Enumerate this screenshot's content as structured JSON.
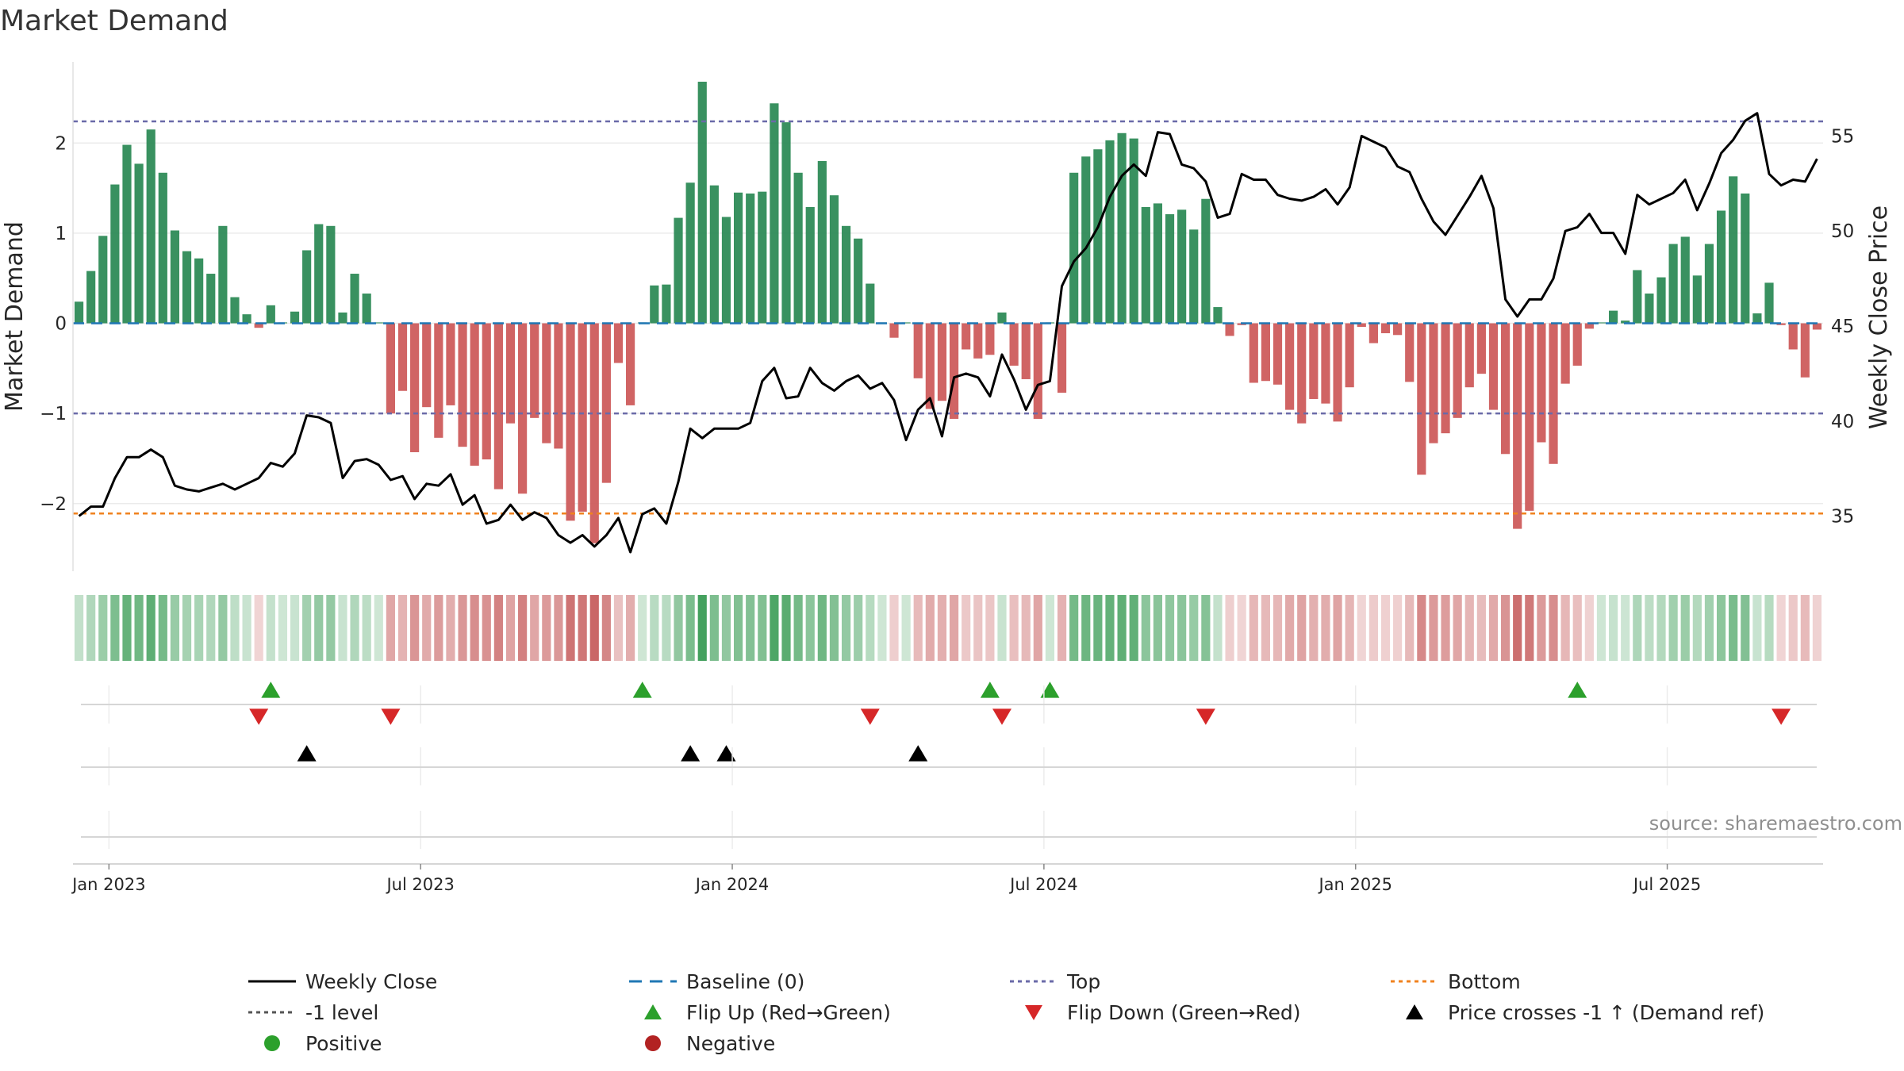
{
  "chart_data": {
    "type": "bar",
    "title": "Market Demand",
    "ylabel": "Market Demand",
    "y2label": "Weekly Close Price",
    "ylim": [
      -2.75,
      2.9
    ],
    "y2lim": [
      32.1,
      58.9
    ],
    "yticks": [
      -2,
      -1,
      0,
      1,
      2
    ],
    "y2ticks": [
      35,
      40,
      45,
      50,
      55
    ],
    "ytick_labels": [
      "−2",
      "−1",
      "0",
      "1",
      "2"
    ],
    "y2tick_labels": [
      "35",
      "40",
      "45",
      "50",
      "55"
    ],
    "top_level": 2.24,
    "bottom_level": -2.11,
    "minus_one_level": -1,
    "date_ticks": [
      {
        "x": 2.5,
        "label": "Jan 2023"
      },
      {
        "x": 28.5,
        "label": "Jul 2023"
      },
      {
        "x": 54.5,
        "label": "Jan 2024"
      },
      {
        "x": 80.5,
        "label": "Jul 2024"
      },
      {
        "x": 106.5,
        "label": "Jan 2025"
      },
      {
        "x": 132.5,
        "label": "Jul 2025"
      }
    ],
    "series": [
      {
        "name": "Market Demand",
        "type": "bar",
        "values": [
          0.24,
          0.58,
          0.97,
          1.54,
          1.98,
          1.77,
          2.15,
          1.67,
          1.03,
          0.8,
          0.72,
          0.55,
          1.08,
          0.29,
          0.1,
          -0.05,
          0.2,
          0.01,
          0.13,
          0.81,
          1.1,
          1.08,
          0.12,
          0.55,
          0.33,
          0.01,
          -1.0,
          -0.75,
          -1.43,
          -0.93,
          -1.27,
          -0.91,
          -1.37,
          -1.58,
          -1.51,
          -1.84,
          -1.11,
          -1.89,
          -1.05,
          -1.33,
          -1.39,
          -2.19,
          -2.09,
          -2.44,
          -1.77,
          -0.44,
          -0.91,
          0.01,
          0.42,
          0.43,
          1.17,
          1.56,
          2.68,
          1.53,
          1.18,
          1.45,
          1.44,
          1.46,
          2.44,
          2.23,
          1.67,
          1.29,
          1.8,
          1.42,
          1.08,
          0.94,
          0.44,
          0.01,
          -0.16,
          0.01,
          -0.61,
          -0.95,
          -0.86,
          -1.06,
          -0.29,
          -0.39,
          -0.35,
          0.12,
          -0.47,
          -0.62,
          -1.06,
          0.01,
          -0.77,
          1.67,
          1.85,
          1.93,
          2.03,
          2.11,
          2.05,
          1.29,
          1.33,
          1.21,
          1.26,
          1.04,
          1.38,
          0.18,
          -0.14,
          -0.02,
          -0.66,
          -0.64,
          -0.68,
          -0.96,
          -1.11,
          -0.84,
          -0.89,
          -1.09,
          -0.71,
          -0.04,
          -0.22,
          -0.11,
          -0.13,
          -0.65,
          -1.68,
          -1.33,
          -1.22,
          -1.05,
          -0.71,
          -0.56,
          -0.96,
          -1.45,
          -2.28,
          -2.08,
          -1.32,
          -1.56,
          -0.67,
          -0.47,
          -0.06,
          0.01,
          0.14,
          0.03,
          0.59,
          0.33,
          0.51,
          0.88,
          0.96,
          0.53,
          0.88,
          1.25,
          1.63,
          1.44,
          0.11,
          0.45,
          -0.02,
          -0.29,
          -0.6,
          -0.07
        ]
      },
      {
        "name": "Weekly Close",
        "type": "line",
        "values": [
          35.0,
          35.5,
          35.5,
          37.0,
          38.1,
          38.1,
          38.5,
          38.1,
          36.6,
          36.4,
          36.3,
          36.5,
          36.7,
          36.4,
          36.7,
          37.0,
          37.8,
          37.6,
          38.3,
          40.3,
          40.2,
          39.9,
          37.0,
          37.9,
          38.0,
          37.7,
          36.9,
          37.1,
          35.9,
          36.7,
          36.6,
          37.2,
          35.6,
          36.1,
          34.6,
          34.8,
          35.6,
          34.8,
          35.2,
          34.9,
          34.0,
          33.6,
          34.0,
          33.4,
          34.0,
          34.9,
          33.1,
          35.1,
          35.4,
          34.6,
          36.8,
          39.6,
          39.1,
          39.6,
          39.6,
          39.6,
          39.9,
          42.1,
          42.8,
          41.2,
          41.3,
          42.8,
          42.0,
          41.6,
          42.1,
          42.4,
          41.7,
          42.0,
          41.1,
          39.0,
          40.6,
          41.2,
          39.2,
          42.3,
          42.5,
          42.3,
          41.3,
          43.5,
          42.2,
          40.6,
          41.9,
          42.1,
          47.1,
          48.4,
          49.1,
          50.2,
          51.8,
          52.9,
          53.5,
          52.9,
          55.2,
          55.1,
          53.5,
          53.3,
          52.6,
          50.7,
          50.9,
          53.0,
          52.7,
          52.7,
          51.9,
          51.7,
          51.6,
          51.8,
          52.2,
          51.4,
          52.3,
          55.0,
          54.7,
          54.4,
          53.4,
          53.1,
          51.7,
          50.5,
          49.8,
          50.8,
          51.8,
          52.9,
          51.2,
          46.4,
          45.5,
          46.4,
          46.4,
          47.5,
          50.0,
          50.2,
          50.9,
          49.9,
          49.9,
          48.8,
          51.9,
          51.4,
          51.7,
          52.0,
          52.7,
          51.1,
          52.5,
          54.1,
          54.8,
          55.8,
          56.2,
          53.0,
          52.4,
          52.7,
          52.6,
          53.8
        ]
      }
    ],
    "flip_up": [
      16,
      47,
      76,
      81,
      125
    ],
    "flip_down": [
      15,
      26,
      66,
      77,
      94,
      142
    ],
    "price_crosses": [
      19,
      51,
      54,
      70
    ],
    "source": "source: sharemaestro.com",
    "legend": {
      "placement": "bottom",
      "entries": [
        {
          "label": "Weekly Close",
          "marker": "line"
        },
        {
          "label": "Baseline (0)",
          "marker": "dash"
        },
        {
          "label": "Top",
          "marker": "dots-slate"
        },
        {
          "label": "Bottom",
          "marker": "dots-orange"
        },
        {
          "label": "-1 level",
          "marker": "dots-grey"
        },
        {
          "label": "Flip Up (Red→Green)",
          "marker": "triangle-up-green"
        },
        {
          "label": "Flip Down (Green→Red)",
          "marker": "triangle-down-red"
        },
        {
          "label": "Price crosses -1 ↑ (Demand ref)",
          "marker": "triangle-up-black"
        },
        {
          "label": "Positive",
          "marker": "circle-green"
        },
        {
          "label": "Negative",
          "marker": "circle-red"
        }
      ]
    }
  },
  "colors": {
    "positive": "#2e8b57",
    "negative": "#cd5c5c",
    "price": "#000000",
    "top": "#6a6aa8",
    "bottom": "#f0821e",
    "baseline": "#1f77b4",
    "flip_up": "#2ca02c",
    "flip_down": "#d62728",
    "legend_positive": "#2ca02c",
    "legend_negative": "#b22222"
  }
}
